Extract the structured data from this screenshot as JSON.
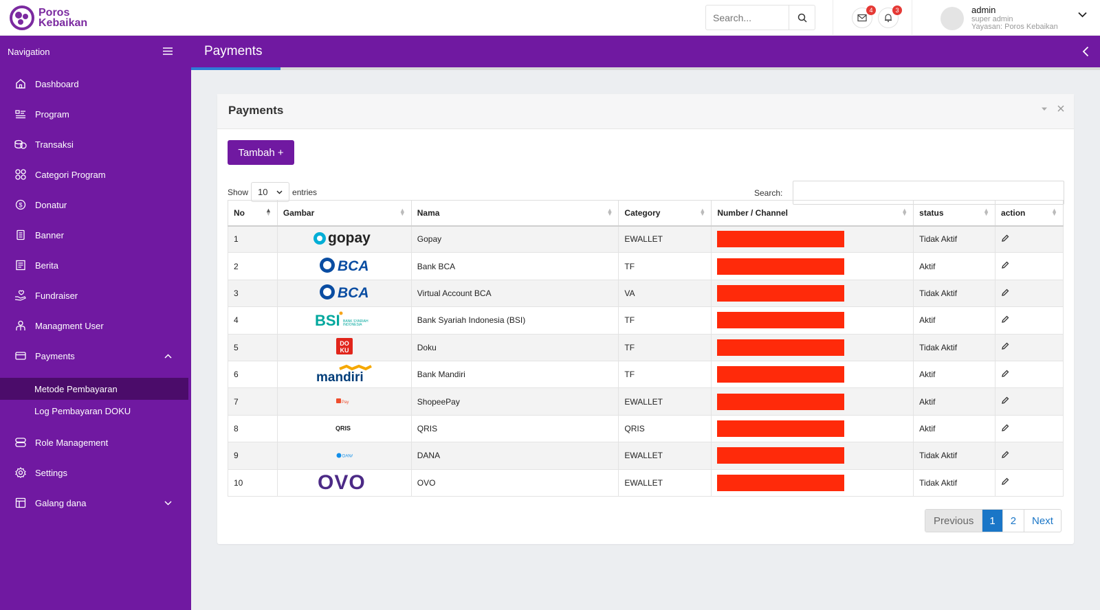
{
  "brand": {
    "name_line1": "Poros",
    "name_line2": "Kebaikan"
  },
  "topbar": {
    "search_placeholder": "Search...",
    "mail_badge": "4",
    "notif_badge": "3",
    "user_name": "admin",
    "user_role": "super admin",
    "user_org": "Yayasan: Poros Kebaikan"
  },
  "sidebar": {
    "title": "Navigation",
    "items": [
      {
        "label": "Dashboard",
        "icon": "home-icon"
      },
      {
        "label": "Program",
        "icon": "program-icon"
      },
      {
        "label": "Transaksi",
        "icon": "coins-icon"
      },
      {
        "label": "Categori Program",
        "icon": "grid-icon"
      },
      {
        "label": "Donatur",
        "icon": "dollar-icon"
      },
      {
        "label": "Banner",
        "icon": "banner-icon"
      },
      {
        "label": "Berita",
        "icon": "news-icon"
      },
      {
        "label": "Fundraiser",
        "icon": "hand-heart-icon"
      },
      {
        "label": "Managment User",
        "icon": "users-icon"
      },
      {
        "label": "Payments",
        "icon": "card-icon"
      },
      {
        "label": "Role Management",
        "icon": "database-icon"
      },
      {
        "label": "Settings",
        "icon": "gear-icon"
      },
      {
        "label": "Galang dana",
        "icon": "layout-icon"
      }
    ],
    "payments_sub": [
      "Metode Pembayaran",
      "Log Pembayaran DOKU"
    ]
  },
  "page": {
    "title": "Payments"
  },
  "card": {
    "title": "Payments",
    "add_button": "Tambah +",
    "show_label": "Show",
    "entries_value": "10",
    "entries_label": "entries",
    "search_label": "Search:"
  },
  "table": {
    "headers": [
      "No",
      "Gambar",
      "Nama",
      "Category",
      "Number / Channel",
      "status",
      "action"
    ],
    "rows": [
      {
        "no": "1",
        "logo": "gopay",
        "nama": "Gopay",
        "category": "EWALLET",
        "status": "Tidak Aktif"
      },
      {
        "no": "2",
        "logo": "BCA",
        "nama": "Bank BCA",
        "category": "TF",
        "status": "Aktif"
      },
      {
        "no": "3",
        "logo": "BCA",
        "nama": "Virtual Account BCA",
        "category": "VA",
        "status": "Tidak Aktif"
      },
      {
        "no": "4",
        "logo": "BSI",
        "nama": "Bank Syariah Indonesia (BSI)",
        "category": "TF",
        "status": "Aktif"
      },
      {
        "no": "5",
        "logo": "DOKU",
        "nama": "Doku",
        "category": "TF",
        "status": "Tidak Aktif"
      },
      {
        "no": "6",
        "logo": "mandiri",
        "nama": "Bank Mandiri",
        "category": "TF",
        "status": "Aktif"
      },
      {
        "no": "7",
        "logo": "ShopeePay",
        "nama": "ShopeePay",
        "category": "EWALLET",
        "status": "Aktif"
      },
      {
        "no": "8",
        "logo": "QRIS",
        "nama": "QRIS",
        "category": "QRIS",
        "status": "Aktif"
      },
      {
        "no": "9",
        "logo": "DANA",
        "nama": "DANA",
        "category": "EWALLET",
        "status": "Tidak Aktif"
      },
      {
        "no": "10",
        "logo": "OVO",
        "nama": "OVO",
        "category": "EWALLET",
        "status": "Tidak Aktif"
      }
    ]
  },
  "pagination": {
    "previous": "Previous",
    "pages": [
      "1",
      "2"
    ],
    "current": "1",
    "next": "Next"
  },
  "colors": {
    "brand": "#7019a1",
    "active_nav": "#4b0c6a",
    "link": "#1a76c7",
    "redaction": "#ff2a0a"
  }
}
